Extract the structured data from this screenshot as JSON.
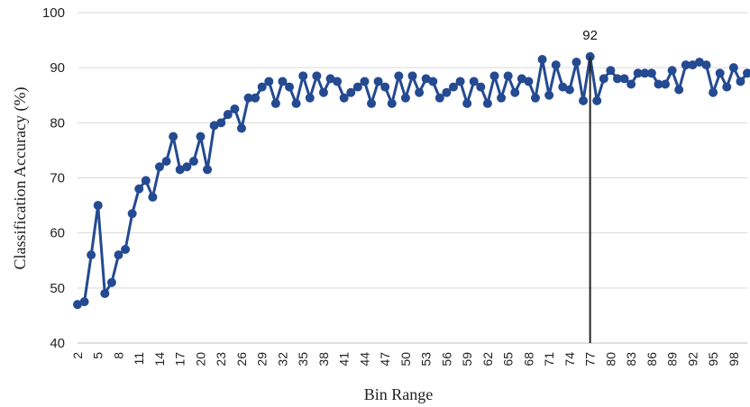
{
  "chart_data": {
    "type": "line",
    "xlabel": "Bin Range",
    "ylabel": "Classification Accuracy (%)",
    "xlim": [
      2,
      100
    ],
    "ylim": [
      40,
      100
    ],
    "yticks": [
      40,
      50,
      60,
      70,
      80,
      90,
      100
    ],
    "xticks": [
      2,
      5,
      8,
      11,
      14,
      17,
      20,
      23,
      26,
      29,
      32,
      35,
      38,
      41,
      44,
      47,
      50,
      53,
      56,
      59,
      62,
      65,
      68,
      71,
      74,
      77,
      80,
      83,
      86,
      89,
      92,
      95,
      98
    ],
    "grid": "horizontal",
    "series_color": "#244A91",
    "annotation": {
      "x": 77,
      "y": 92,
      "label": "92"
    },
    "x": [
      2,
      3,
      4,
      5,
      6,
      7,
      8,
      9,
      10,
      11,
      12,
      13,
      14,
      15,
      16,
      17,
      18,
      19,
      20,
      21,
      22,
      23,
      24,
      25,
      26,
      27,
      28,
      29,
      30,
      31,
      32,
      33,
      34,
      35,
      36,
      37,
      38,
      39,
      40,
      41,
      42,
      43,
      44,
      45,
      46,
      47,
      48,
      49,
      50,
      51,
      52,
      53,
      54,
      55,
      56,
      57,
      58,
      59,
      60,
      61,
      62,
      63,
      64,
      65,
      66,
      67,
      68,
      69,
      70,
      71,
      72,
      73,
      74,
      75,
      76,
      77,
      78,
      79,
      80,
      81,
      82,
      83,
      84,
      85,
      86,
      87,
      88,
      89,
      90,
      91,
      92,
      93,
      94,
      95,
      96,
      97,
      98,
      99,
      100
    ],
    "y": [
      47,
      47.5,
      56,
      65,
      49,
      51,
      56,
      57,
      63.5,
      68,
      69.5,
      66.5,
      72,
      73,
      77.5,
      71.5,
      72,
      73,
      77.5,
      71.5,
      79.5,
      80,
      81.5,
      82.5,
      79,
      84.5,
      84.5,
      86.5,
      87.5,
      83.5,
      87.5,
      86.5,
      83.5,
      88.5,
      84.5,
      88.5,
      85.5,
      88,
      87.5,
      84.5,
      85.5,
      86.5,
      87.5,
      83.5,
      87.5,
      86.5,
      83.5,
      88.5,
      84.5,
      88.5,
      85.5,
      88,
      87.5,
      84.5,
      85.5,
      86.5,
      87.5,
      83.5,
      87.5,
      86.5,
      83.5,
      88.5,
      84.5,
      88.5,
      85.5,
      88,
      87.5,
      84.5,
      91.5,
      85,
      90.5,
      86.5,
      86,
      91,
      84,
      92,
      84,
      88,
      89.5,
      88,
      88,
      87,
      89,
      89,
      89,
      87,
      87,
      89.5,
      86,
      90.5,
      90.5,
      91,
      90.5,
      85.5,
      89,
      86.5,
      90,
      87.5,
      89
    ]
  }
}
